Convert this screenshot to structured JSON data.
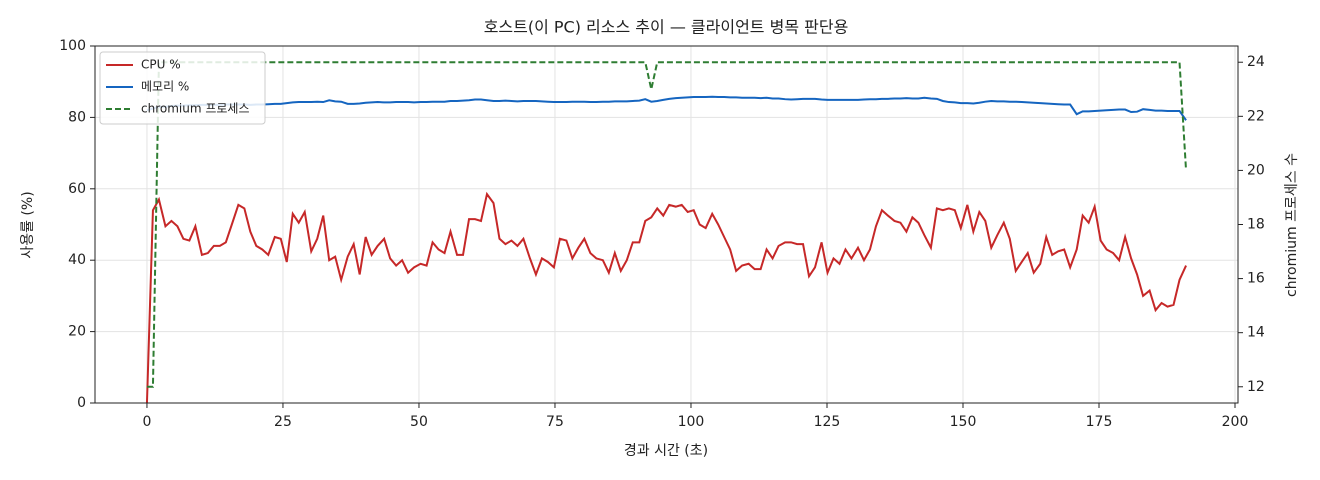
{
  "chart_data": {
    "type": "line",
    "title": "호스트(이 PC) 리소스 추이 — 클라이언트 병목 판단용",
    "x_label": "경과 시간 (초)",
    "y_label": "사용률 (%)",
    "y2_label": "chromium 프로세스 수",
    "xlim": [
      -9.55,
      200.55
    ],
    "xticks": [
      0,
      25,
      50,
      75,
      100,
      125,
      150,
      175,
      200
    ],
    "ylim": [
      0,
      100
    ],
    "yticks": [
      0,
      20,
      40,
      60,
      80,
      100
    ],
    "y2lim": [
      11.4,
      24.6
    ],
    "y2ticks": [
      12,
      14,
      16,
      18,
      20,
      22,
      24
    ],
    "grid": true,
    "legend": "upper left",
    "x": [
      0,
      1.1,
      2.2,
      3.4,
      4.5,
      5.6,
      6.7,
      7.8,
      8.9,
      10.1,
      11.2,
      12.3,
      13.4,
      14.5,
      15.6,
      16.8,
      17.9,
      19.0,
      20.1,
      21.2,
      22.3,
      23.5,
      24.6,
      25.7,
      26.8,
      27.9,
      29.0,
      30.2,
      31.3,
      32.4,
      33.5,
      34.6,
      35.7,
      36.9,
      38.0,
      39.1,
      40.2,
      41.3,
      42.4,
      43.6,
      44.7,
      45.8,
      46.9,
      48.0,
      49.1,
      50.3,
      51.4,
      52.5,
      53.6,
      54.7,
      55.8,
      57.0,
      58.1,
      59.2,
      60.3,
      61.4,
      62.5,
      63.7,
      64.8,
      65.9,
      67.0,
      68.1,
      69.2,
      70.4,
      71.5,
      72.6,
      73.7,
      74.8,
      75.9,
      77.1,
      78.2,
      79.3,
      80.4,
      81.5,
      82.6,
      83.8,
      84.9,
      86.0,
      87.1,
      88.2,
      89.3,
      90.5,
      91.6,
      92.7,
      93.8,
      94.9,
      96.0,
      97.2,
      98.3,
      99.4,
      100.5,
      101.6,
      102.7,
      103.9,
      105.0,
      106.1,
      107.2,
      108.3,
      109.4,
      110.6,
      111.7,
      112.8,
      113.9,
      115.0,
      116.1,
      117.3,
      118.4,
      119.5,
      120.6,
      121.7,
      122.8,
      124.0,
      125.1,
      126.2,
      127.3,
      128.4,
      129.5,
      130.7,
      131.8,
      132.9,
      134.0,
      135.1,
      136.2,
      137.4,
      138.5,
      139.6,
      140.7,
      141.8,
      142.9,
      144.1,
      145.2,
      146.3,
      147.4,
      148.5,
      149.6,
      150.8,
      151.9,
      153.0,
      154.1,
      155.2,
      156.3,
      157.5,
      158.6,
      159.7,
      160.8,
      161.9,
      163.0,
      164.2,
      165.3,
      166.4,
      167.5,
      168.6,
      169.7,
      170.9,
      172.0,
      173.1,
      174.2,
      175.3,
      176.4,
      177.6,
      178.7,
      179.8,
      180.9,
      182.0,
      183.1,
      184.3,
      185.4,
      186.5,
      187.6,
      188.7,
      189.8,
      191.0
    ],
    "series": [
      {
        "name": "CPU %",
        "color": "#c62828",
        "linestyle": "solid",
        "axis": "y",
        "values": [
          0,
          54,
          57,
          49.5,
          51,
          49.5,
          46,
          45.5,
          49.5,
          41.5,
          42,
          44,
          44,
          45,
          50,
          55.5,
          54.5,
          48,
          44,
          43,
          41.5,
          46.5,
          46,
          39.5,
          53,
          50.5,
          53.5,
          42.5,
          46,
          52.5,
          40,
          41,
          34.5,
          41,
          44.5,
          36,
          46.5,
          41.5,
          44,
          46,
          40.5,
          38.5,
          40,
          36.5,
          38,
          39,
          38.5,
          45,
          43,
          42,
          48,
          41.5,
          41.5,
          51.5,
          51.5,
          51,
          58.5,
          56,
          46,
          44.5,
          45.5,
          44,
          46,
          40.5,
          36,
          40.5,
          39.5,
          38,
          46,
          45.5,
          40.5,
          43.5,
          46,
          42,
          40.5,
          40,
          36.5,
          42,
          37,
          40,
          45,
          45,
          51,
          52,
          54.5,
          52.5,
          55.5,
          55,
          55.5,
          53.5,
          54,
          50,
          49,
          53,
          50,
          46.5,
          43,
          37,
          38.5,
          39,
          37.5,
          37.5,
          43,
          40.5,
          44,
          45,
          45,
          44.5,
          44.5,
          35.5,
          38,
          45,
          36.5,
          40.5,
          39,
          43,
          40.5,
          43.5,
          40,
          43,
          49.5,
          54,
          52.5,
          51,
          50.5,
          48,
          52,
          50.5,
          47,
          43.5,
          54.5,
          54,
          54.5,
          54,
          49,
          55.5,
          48,
          53.5,
          51,
          43.5,
          47,
          50.5,
          46,
          37,
          39.5,
          42,
          36.5,
          39,
          46.5,
          41.5,
          42.5,
          43,
          38,
          43,
          52.5,
          50.5,
          55,
          45.5,
          43,
          42,
          40,
          46.5,
          40.5,
          36,
          30,
          31.5,
          26,
          28,
          27,
          27.5,
          34.5,
          38.5
        ]
      },
      {
        "name": "메모리 %",
        "color": "#1565c0",
        "linestyle": "solid",
        "axis": "y",
        "values": [
          82,
          82.5,
          83,
          83,
          83.2,
          83.3,
          83.3,
          83.4,
          83.4,
          83.5,
          83.5,
          83.5,
          83.5,
          83.6,
          83.6,
          83.6,
          83.6,
          83.5,
          83.6,
          83.6,
          83.7,
          83.8,
          83.8,
          84.0,
          84.2,
          84.3,
          84.3,
          84.3,
          84.4,
          84.3,
          84.8,
          84.5,
          84.4,
          83.8,
          83.8,
          83.9,
          84.1,
          84.2,
          84.3,
          84.2,
          84.2,
          84.3,
          84.3,
          84.3,
          84.2,
          84.3,
          84.3,
          84.4,
          84.4,
          84.4,
          84.6,
          84.6,
          84.7,
          84.8,
          85.0,
          85.0,
          84.8,
          84.6,
          84.6,
          84.7,
          84.6,
          84.5,
          84.6,
          84.6,
          84.6,
          84.5,
          84.4,
          84.3,
          84.3,
          84.3,
          84.4,
          84.4,
          84.4,
          84.3,
          84.3,
          84.4,
          84.4,
          84.5,
          84.5,
          84.5,
          84.6,
          84.7,
          85.1,
          84.4,
          84.6,
          84.9,
          85.2,
          85.4,
          85.5,
          85.6,
          85.7,
          85.7,
          85.7,
          85.8,
          85.7,
          85.7,
          85.6,
          85.6,
          85.5,
          85.5,
          85.5,
          85.4,
          85.5,
          85.3,
          85.3,
          85.1,
          85.0,
          85.1,
          85.2,
          85.2,
          85.2,
          85.0,
          84.9,
          84.9,
          84.9,
          84.9,
          84.9,
          84.9,
          85.0,
          85.1,
          85.1,
          85.2,
          85.2,
          85.3,
          85.3,
          85.4,
          85.3,
          85.3,
          85.5,
          85.3,
          85.2,
          84.6,
          84.3,
          84.2,
          84.0,
          84.0,
          83.9,
          84.1,
          84.4,
          84.6,
          84.5,
          84.5,
          84.4,
          84.4,
          84.3,
          84.2,
          84.1,
          84.0,
          83.9,
          83.8,
          83.7,
          83.6,
          83.6,
          80.9,
          81.7,
          81.7,
          81.8,
          81.9,
          82.0,
          82.1,
          82.2,
          82.2,
          81.5,
          81.6,
          82.3,
          82.1,
          81.9,
          81.9,
          81.8,
          81.8,
          81.8,
          79.2
        ]
      },
      {
        "name": "chromium 프로세스",
        "color": "#2e7d32",
        "linestyle": "dashed",
        "axis": "y2",
        "values": [
          12,
          12,
          24,
          24,
          24,
          24,
          24,
          24,
          24,
          24,
          24,
          24,
          24,
          24,
          24,
          24,
          24,
          24,
          24,
          24,
          24,
          24,
          24,
          24,
          24,
          24,
          24,
          24,
          24,
          24,
          24,
          24,
          24,
          24,
          24,
          24,
          24,
          24,
          24,
          24,
          24,
          24,
          24,
          24,
          24,
          24,
          24,
          24,
          24,
          24,
          24,
          24,
          24,
          24,
          24,
          24,
          24,
          24,
          24,
          24,
          24,
          24,
          24,
          24,
          24,
          24,
          24,
          24,
          24,
          24,
          24,
          24,
          24,
          24,
          24,
          24,
          24,
          24,
          24,
          24,
          24,
          24,
          24,
          23,
          24,
          24,
          24,
          24,
          24,
          24,
          24,
          24,
          24,
          24,
          24,
          24,
          24,
          24,
          24,
          24,
          24,
          24,
          24,
          24,
          24,
          24,
          24,
          24,
          24,
          24,
          24,
          24,
          24,
          24,
          24,
          24,
          24,
          24,
          24,
          24,
          24,
          24,
          24,
          24,
          24,
          24,
          24,
          24,
          24,
          24,
          24,
          24,
          24,
          24,
          24,
          24,
          24,
          24,
          24,
          24,
          24,
          24,
          24,
          24,
          24,
          24,
          24,
          24,
          24,
          24,
          24,
          24,
          24,
          24,
          24,
          24,
          24,
          24,
          24,
          24,
          24,
          24,
          24,
          24,
          24,
          24,
          24,
          24,
          24,
          24,
          24,
          20
        ]
      }
    ]
  }
}
